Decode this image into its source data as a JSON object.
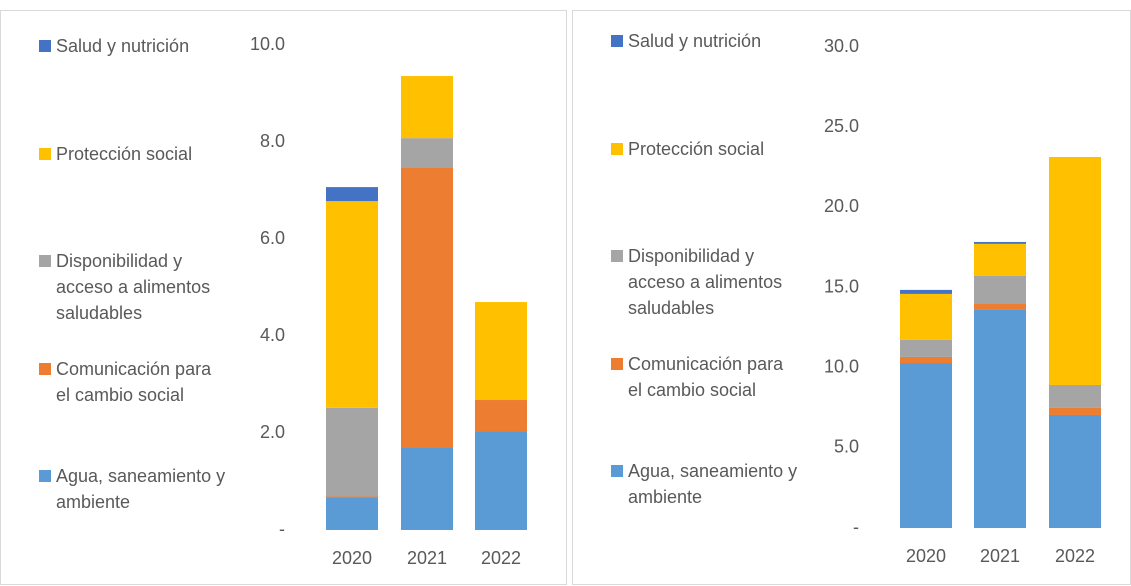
{
  "chart_data": [
    {
      "type": "stacked_bar",
      "categories": [
        "2020",
        "2021",
        "2022"
      ],
      "ylim": [
        0,
        10
      ],
      "yticks": [
        {
          "value": 0,
          "label": "-"
        },
        {
          "value": 2,
          "label": "2.0"
        },
        {
          "value": 4,
          "label": "4.0"
        },
        {
          "value": 6,
          "label": "6.0"
        },
        {
          "value": 8,
          "label": "8.0"
        },
        {
          "value": 10,
          "label": "10.0"
        }
      ],
      "series": [
        {
          "name": "Agua, saneamiento y ambiente",
          "color": "#5b9bd5",
          "values": [
            0.66,
            1.71,
            2.04
          ]
        },
        {
          "name": "Comunicación para el cambio social",
          "color": "#ed7d31",
          "values": [
            0.03,
            5.77,
            0.64
          ]
        },
        {
          "name": "Disponibilidad y acceso a alimentos saludables",
          "color": "#a5a5a5",
          "values": [
            1.83,
            0.6,
            0
          ]
        },
        {
          "name": "Protección social",
          "color": "#ffc000",
          "values": [
            4.26,
            1.28,
            2.02
          ]
        },
        {
          "name": "Salud y nutrición",
          "color": "#4472c4",
          "values": [
            0.29,
            0,
            0
          ]
        }
      ]
    },
    {
      "type": "stacked_bar",
      "categories": [
        "2020",
        "2021",
        "2022"
      ],
      "ylim": [
        0,
        30
      ],
      "yticks": [
        {
          "value": 0,
          "label": "-"
        },
        {
          "value": 5,
          "label": "5.0"
        },
        {
          "value": 10,
          "label": "10.0"
        },
        {
          "value": 15,
          "label": "15.0"
        },
        {
          "value": 20,
          "label": "20.0"
        },
        {
          "value": 25,
          "label": "25.0"
        },
        {
          "value": 30,
          "label": "30.0"
        }
      ],
      "series": [
        {
          "name": "Agua, saneamiento y ambiente",
          "color": "#5b9bd5",
          "values": [
            10.29,
            13.6,
            7.05
          ]
        },
        {
          "name": "Comunicación para el cambio social",
          "color": "#ed7d31",
          "values": [
            0.38,
            0.37,
            0.44
          ]
        },
        {
          "name": "Disponibilidad y acceso a alimentos saludables",
          "color": "#a5a5a5",
          "values": [
            1.06,
            1.75,
            1.43
          ]
        },
        {
          "name": "Protección social",
          "color": "#ffc000",
          "values": [
            2.87,
            2.0,
            14.22
          ]
        },
        {
          "name": "Salud y nutrición",
          "color": "#4472c4",
          "values": [
            0.25,
            0.12,
            0
          ]
        }
      ]
    }
  ]
}
